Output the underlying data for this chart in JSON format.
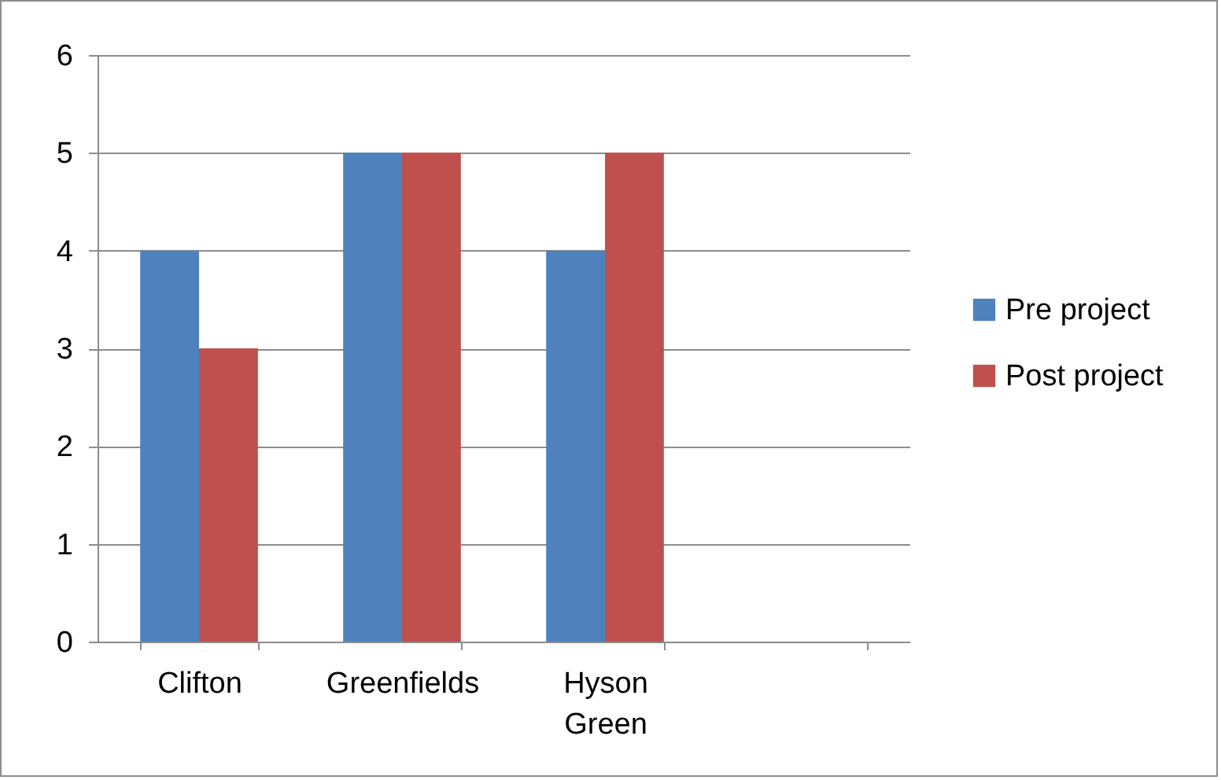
{
  "chart_data": {
    "type": "bar",
    "categories": [
      "Clifton",
      "Greenfields",
      "Hyson Green",
      null
    ],
    "series": [
      {
        "name": "Pre project",
        "color": "#4f81bd",
        "values": [
          4,
          5,
          4,
          null
        ]
      },
      {
        "name": "Post project",
        "color": "#c0504d",
        "values": [
          3,
          5,
          5,
          null
        ]
      }
    ],
    "ylim": [
      0,
      6
    ],
    "yticks": [
      0,
      1,
      2,
      3,
      4,
      5,
      6
    ],
    "grid": "y",
    "legend": "right"
  }
}
